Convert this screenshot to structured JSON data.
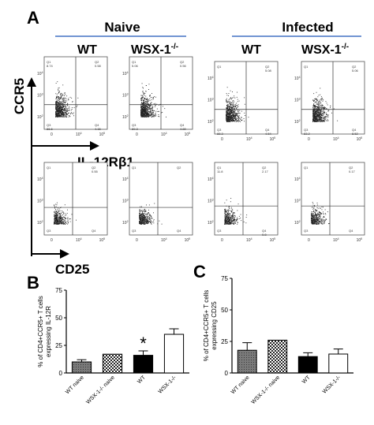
{
  "panel_a": {
    "letter": "A",
    "group_naive": "Naive",
    "group_infected": "Infected",
    "col_wt": "WT",
    "col_ko": "WSX-1",
    "col_ko_sup": "-/-",
    "y_axis_label": "CCR5",
    "x_axis_label_row1": "IL-12Rβ1",
    "x_axis_label_row2": "CD25",
    "accent_color": "#4472c4",
    "quadrants": [
      [
        "Q1",
        "Q2",
        "Q3",
        "Q4"
      ],
      [
        "Q1",
        "Q2",
        "Q3",
        "Q4"
      ],
      [
        "Q1",
        "Q2",
        "Q3",
        "Q4"
      ],
      [
        "Q1",
        "Q2",
        "Q3",
        "Q4"
      ],
      [
        "Q1",
        "Q2",
        "Q3",
        "Q4"
      ],
      [
        "Q1",
        "Q2",
        "Q3",
        "Q4"
      ],
      [
        "Q1",
        "Q2",
        "Q3",
        "Q4"
      ],
      [
        "Q1",
        "Q2",
        "Q3",
        "Q4"
      ]
    ],
    "quad_values": [
      [
        "8.74",
        "0.58",
        "86.6",
        "4.15"
      ],
      [
        "5.06",
        "0.56",
        "89.3",
        "4.89"
      ],
      [
        "",
        "5.08",
        "88.3",
        "4.54"
      ],
      [
        "",
        "5.06",
        "83.2",
        "8.52"
      ],
      [
        "",
        "0.55",
        "",
        ""
      ],
      [
        "",
        "",
        "",
        ""
      ],
      [
        "11.8",
        "2.17",
        "",
        "0.8"
      ],
      [
        "",
        "0.17",
        "",
        ""
      ]
    ],
    "tick_labels": [
      "10",
      "2",
      "3",
      "4",
      "5",
      "0"
    ]
  },
  "chart_data": [
    {
      "type": "bar",
      "letter": "B",
      "ylabel": "% of CD4+CCR5+ T cells expressing IL-12R",
      "categories": [
        "WT naive",
        "WSX-1-/- naive",
        "WT",
        "WSX-1-/-"
      ],
      "values": [
        10,
        17,
        16,
        35
      ],
      "errors": [
        2,
        0,
        4,
        5
      ],
      "fills": [
        "gray-hatch",
        "checker",
        "black",
        "white"
      ],
      "ylim": [
        0,
        75
      ],
      "yticks": [
        "0",
        "25",
        "50",
        "75"
      ],
      "annotation": "*"
    },
    {
      "type": "bar",
      "letter": "C",
      "ylabel": "% of CD4+CCR5+ T cells expressing CD25",
      "categories": [
        "WT naive",
        "WSX-1-/- naive",
        "WT",
        "WSX-1-/-"
      ],
      "values": [
        18,
        26,
        13,
        15
      ],
      "errors": [
        6,
        0,
        3,
        4
      ],
      "fills": [
        "gray-hatch",
        "checker",
        "black",
        "white"
      ],
      "ylim": [
        0,
        75
      ],
      "yticks": [
        "0",
        "25",
        "50",
        "75"
      ]
    }
  ]
}
